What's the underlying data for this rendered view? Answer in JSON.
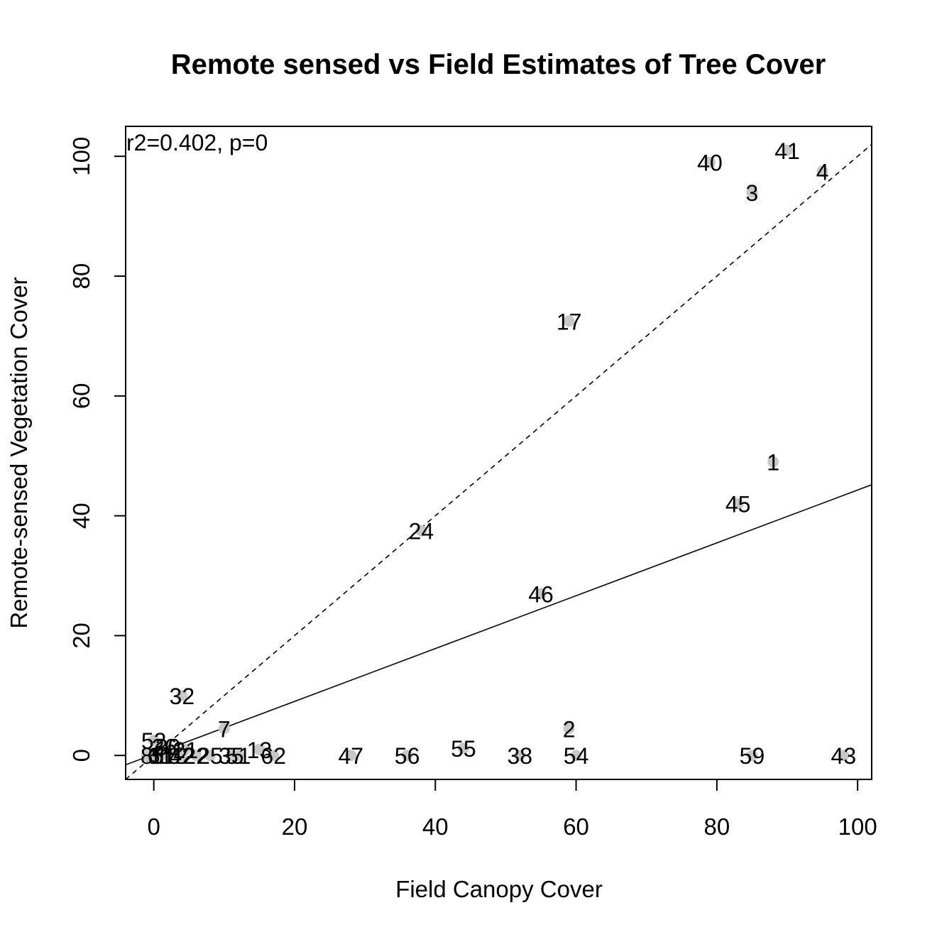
{
  "chart_data": {
    "type": "scatter",
    "title": "Remote sensed vs Field Estimates of Tree Cover",
    "xlabel": "Field Canopy Cover",
    "ylabel": "Remote-sensed Vegetation Cover",
    "annotation": "r2=0.402, p=0",
    "xlim": [
      -4,
      102
    ],
    "ylim": [
      -4,
      105
    ],
    "xticks": [
      0,
      20,
      40,
      60,
      80,
      100
    ],
    "yticks": [
      0,
      20,
      40,
      60,
      80,
      100
    ],
    "grid": false,
    "point_color": "#c8c8c8",
    "points": [
      {
        "label": "1",
        "x": 88,
        "y": 49
      },
      {
        "label": "2",
        "x": 59,
        "y": 4.5
      },
      {
        "label": "3",
        "x": 85,
        "y": 94
      },
      {
        "label": "4",
        "x": 95,
        "y": 97.5
      },
      {
        "label": "7",
        "x": 10,
        "y": 4.5
      },
      {
        "label": "13",
        "x": 15,
        "y": 1
      },
      {
        "label": "17",
        "x": 59,
        "y": 72.5
      },
      {
        "label": "24",
        "x": 38,
        "y": 37.5
      },
      {
        "label": "32",
        "x": 4,
        "y": 10
      },
      {
        "label": "38",
        "x": 52,
        "y": 0
      },
      {
        "label": "40",
        "x": 79,
        "y": 99
      },
      {
        "label": "41",
        "x": 90,
        "y": 101
      },
      {
        "label": "43",
        "x": 98,
        "y": 0
      },
      {
        "label": "45",
        "x": 83,
        "y": 42
      },
      {
        "label": "46",
        "x": 55,
        "y": 27
      },
      {
        "label": "47",
        "x": 28,
        "y": 0
      },
      {
        "label": "54",
        "x": 60,
        "y": 0
      },
      {
        "label": "55",
        "x": 44,
        "y": 1.2
      },
      {
        "label": "56",
        "x": 36,
        "y": 0
      },
      {
        "label": "59",
        "x": 85,
        "y": 0
      },
      {
        "label": "62",
        "x": 17,
        "y": 0
      },
      {
        "label": "51",
        "x": 12,
        "y": 0
      },
      {
        "label": "35",
        "x": 11,
        "y": 0
      },
      {
        "label": "25",
        "x": 8,
        "y": 0
      },
      {
        "label": "22",
        "x": 6,
        "y": 0
      },
      {
        "label": "21",
        "x": 4.5,
        "y": 1
      },
      {
        "label": "30",
        "x": 2,
        "y": 1.5
      },
      {
        "label": "36",
        "x": 1.5,
        "y": 1.5
      },
      {
        "label": "52",
        "x": 0,
        "y": 2.5
      },
      {
        "label": "12",
        "x": 3,
        "y": 0
      },
      {
        "label": "42",
        "x": 4,
        "y": 0
      },
      {
        "label": "11",
        "x": 1,
        "y": 0
      },
      {
        "label": "10",
        "x": 2,
        "y": 0
      },
      {
        "label": "6",
        "x": 0,
        "y": 0
      },
      {
        "label": "5",
        "x": 0.5,
        "y": 0
      },
      {
        "label": "8",
        "x": -1,
        "y": 0
      }
    ],
    "lines": [
      {
        "kind": "regression",
        "style": "solid",
        "intercept": 0.2,
        "slope": 0.441
      },
      {
        "kind": "one-to-one",
        "style": "dashed",
        "intercept": 0,
        "slope": 1
      }
    ]
  }
}
